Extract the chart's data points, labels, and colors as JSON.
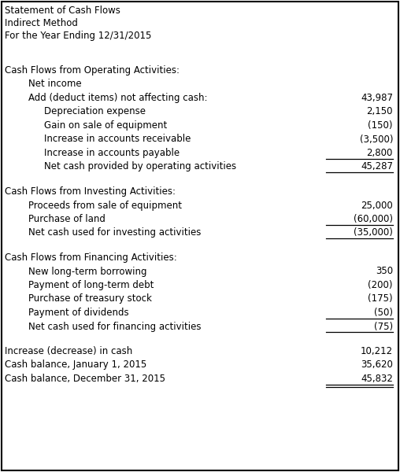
{
  "title_lines": [
    "Statement of Cash Flows",
    "Indirect Method",
    "For the Year Ending 12/31/2015"
  ],
  "rows": [
    {
      "indent": 0,
      "text": "Cash Flows from Operating Activities:",
      "value": "",
      "underline": false,
      "double_underline": false,
      "spacer_before": true
    },
    {
      "indent": 1,
      "text": "Net income",
      "value": "",
      "underline": false,
      "double_underline": false,
      "spacer_before": false
    },
    {
      "indent": 1,
      "text": "Add (deduct items) not affecting cash:",
      "value": "43,987",
      "underline": false,
      "double_underline": false,
      "spacer_before": false
    },
    {
      "indent": 2,
      "text": "Depreciation expense",
      "value": "2,150",
      "underline": false,
      "double_underline": false,
      "spacer_before": false
    },
    {
      "indent": 2,
      "text": "Gain on sale of equipment",
      "value": "(150)",
      "underline": false,
      "double_underline": false,
      "spacer_before": false
    },
    {
      "indent": 2,
      "text": "Increase in accounts receivable",
      "value": "(3,500)",
      "underline": false,
      "double_underline": false,
      "spacer_before": false
    },
    {
      "indent": 2,
      "text": "Increase in accounts payable",
      "value": "2,800",
      "underline": true,
      "double_underline": false,
      "spacer_before": false
    },
    {
      "indent": 2,
      "text": "Net cash provided by operating activities",
      "value": "45,287",
      "underline": true,
      "double_underline": false,
      "spacer_before": false
    },
    {
      "indent": 0,
      "text": "Cash Flows from Investing Activities:",
      "value": "",
      "underline": false,
      "double_underline": false,
      "spacer_before": true
    },
    {
      "indent": 1,
      "text": "Proceeds from sale of equipment",
      "value": "25,000",
      "underline": false,
      "double_underline": false,
      "spacer_before": false
    },
    {
      "indent": 1,
      "text": "Purchase of land",
      "value": "(60,000)",
      "underline": true,
      "double_underline": false,
      "spacer_before": false
    },
    {
      "indent": 1,
      "text": "Net cash used for investing activities",
      "value": "(35,000)",
      "underline": true,
      "double_underline": false,
      "spacer_before": false
    },
    {
      "indent": 0,
      "text": "Cash Flows from Financing Activities:",
      "value": "",
      "underline": false,
      "double_underline": false,
      "spacer_before": true
    },
    {
      "indent": 1,
      "text": "New long-term borrowing",
      "value": "350",
      "underline": false,
      "double_underline": false,
      "spacer_before": false
    },
    {
      "indent": 1,
      "text": "Payment of long-term debt",
      "value": "(200)",
      "underline": false,
      "double_underline": false,
      "spacer_before": false
    },
    {
      "indent": 1,
      "text": "Purchase of treasury stock",
      "value": "(175)",
      "underline": false,
      "double_underline": false,
      "spacer_before": false
    },
    {
      "indent": 1,
      "text": "Payment of dividends",
      "value": "(50)",
      "underline": true,
      "double_underline": false,
      "spacer_before": false
    },
    {
      "indent": 1,
      "text": "Net cash used for financing activities",
      "value": "(75)",
      "underline": true,
      "double_underline": false,
      "spacer_before": false
    },
    {
      "indent": 0,
      "text": "Increase (decrease) in cash",
      "value": "10,212",
      "underline": false,
      "double_underline": false,
      "spacer_before": true
    },
    {
      "indent": 0,
      "text": "Cash balance, January 1, 2015",
      "value": "35,620",
      "underline": false,
      "double_underline": false,
      "spacer_before": false
    },
    {
      "indent": 0,
      "text": "Cash balance, December 31, 2015",
      "value": "45,832",
      "underline": true,
      "double_underline": true,
      "spacer_before": false
    }
  ],
  "font_size": 8.5,
  "text_color": "#000000",
  "bg_color": "#ffffff",
  "border_color": "#000000"
}
